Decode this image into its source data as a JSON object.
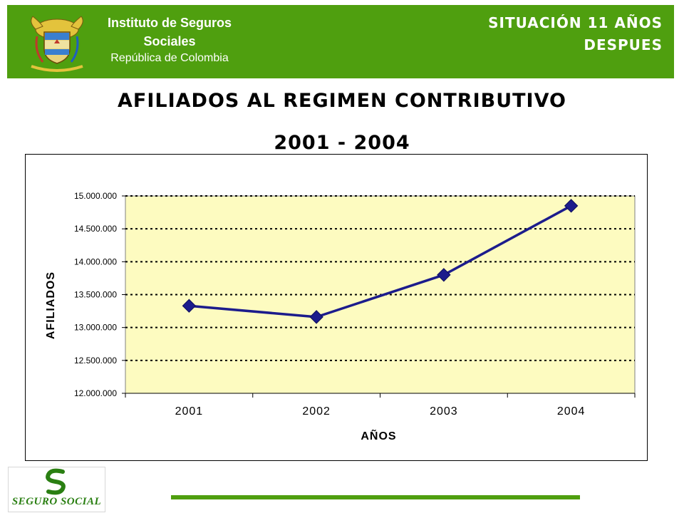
{
  "header": {
    "institution_line1": "Instituto de Seguros",
    "institution_line2": "Sociales",
    "institution_line3": "República de Colombia",
    "crest_motto": "Libertad y Orden",
    "situation_line1": "SITUACIÓN 11 AÑOS",
    "situation_line2": "DESPUES",
    "background_color": "#4f9f0f"
  },
  "title_line1": "AFILIADOS AL REGIMEN CONTRIBUTIVO",
  "title_line2": "2001 - 2004",
  "chart_data": {
    "type": "line",
    "categories": [
      "2001",
      "2002",
      "2003",
      "2004"
    ],
    "series": [
      {
        "values": [
          13330000,
          13160000,
          13800000,
          14850000
        ],
        "color": "#1c1c8c"
      }
    ],
    "xlabel": "AÑOS",
    "ylabel": "AFILIADOS",
    "ylim": [
      12000000,
      15000000
    ],
    "yticks": [
      12000000,
      12500000,
      13000000,
      13500000,
      14000000,
      14500000,
      15000000
    ],
    "ytick_labels": [
      "12.000.000",
      "12.500.000",
      "13.000.000",
      "13.500.000",
      "14.000.000",
      "14.500.000",
      "15.000.000"
    ],
    "grid": true,
    "plot_background": "#fdfbc0"
  },
  "footer": {
    "logo_text": "SEGURO SOCIAL",
    "accent_color": "#4f9f0f"
  }
}
